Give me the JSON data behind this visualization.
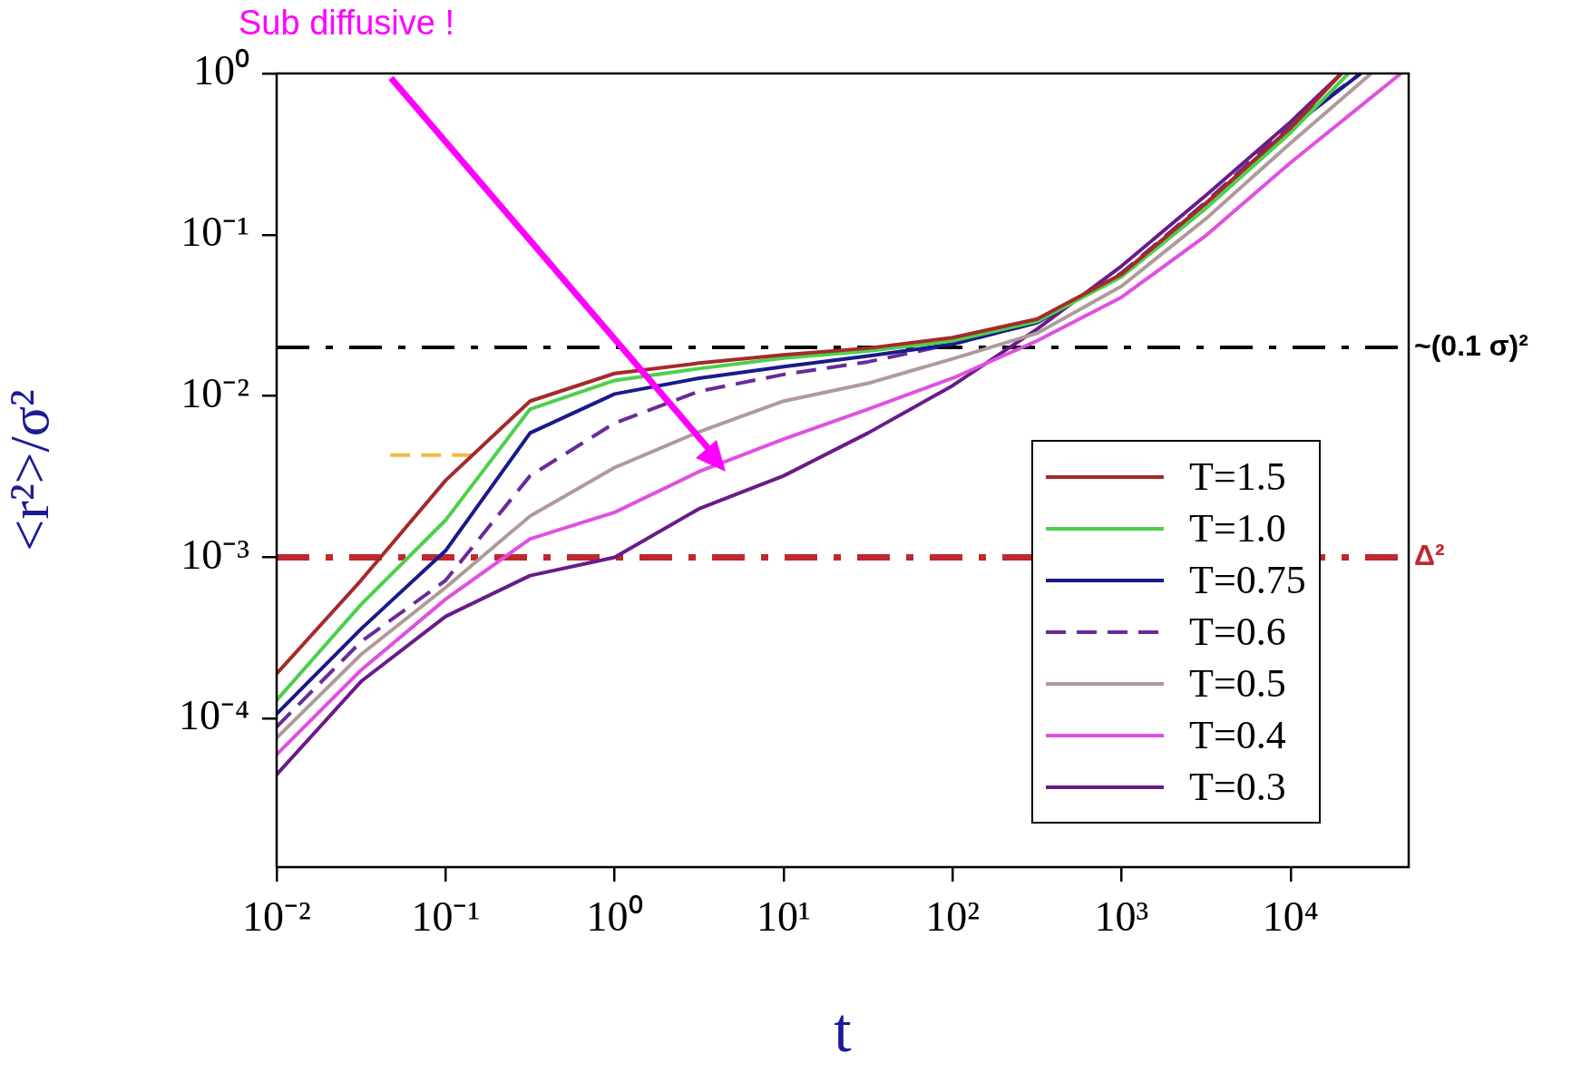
{
  "chart_data": {
    "type": "line",
    "xlabel": "t",
    "ylabel": "<r²>/σ²",
    "log": "xy",
    "xlim": [
      0.01,
      50000
    ],
    "ylim": [
      1.2e-05,
      1
    ],
    "xticks": [
      {
        "value": 0.01,
        "label": "10⁻²"
      },
      {
        "value": 0.1,
        "label": "10⁻¹"
      },
      {
        "value": 1,
        "label": "10⁰"
      },
      {
        "value": 10,
        "label": "10¹"
      },
      {
        "value": 100,
        "label": "10²"
      },
      {
        "value": 1000,
        "label": "10³"
      },
      {
        "value": 10000,
        "label": "10⁴"
      }
    ],
    "yticks": [
      {
        "value": 0.0001,
        "label": "10⁻⁴"
      },
      {
        "value": 0.001,
        "label": "10⁻³"
      },
      {
        "value": 0.01,
        "label": "10⁻²"
      },
      {
        "value": 0.1,
        "label": "10⁻¹"
      },
      {
        "value": 1,
        "label": "10⁰"
      }
    ],
    "legend": "bottom right",
    "series": [
      {
        "name": "T=1.5",
        "color": "#a52a2a",
        "x": [
          0.01,
          0.0316,
          0.1,
          0.316,
          1,
          3.16,
          10,
          31.6,
          100,
          316,
          1000,
          3162,
          10000,
          20000
        ],
        "values": [
          0.00019,
          0.00072,
          0.003,
          0.0093,
          0.0138,
          0.016,
          0.018,
          0.0198,
          0.023,
          0.03,
          0.057,
          0.157,
          0.46,
          1
        ]
      },
      {
        "name": "T=1.0",
        "color": "#4cd04c",
        "x": [
          0.01,
          0.0316,
          0.1,
          0.316,
          1,
          3.16,
          10,
          31.6,
          100,
          316,
          1000,
          3162,
          10000,
          22000
        ],
        "values": [
          0.00013,
          0.00051,
          0.0017,
          0.0083,
          0.0125,
          0.0148,
          0.0172,
          0.019,
          0.022,
          0.029,
          0.055,
          0.146,
          0.43,
          1
        ]
      },
      {
        "name": "T=0.75",
        "color": "#1a1a8c",
        "x": [
          0.01,
          0.0316,
          0.1,
          0.316,
          1,
          3.16,
          10,
          31.6,
          100,
          316,
          1000,
          3162,
          10000,
          26000
        ],
        "values": [
          0.000107,
          0.00036,
          0.0011,
          0.0059,
          0.0103,
          0.0129,
          0.0152,
          0.0177,
          0.021,
          0.0285,
          0.057,
          0.157,
          0.46,
          1
        ]
      },
      {
        "name": "T=0.6",
        "color": "#6a2a9a",
        "line_style": "dashed",
        "x": [
          0.01,
          0.0316,
          0.1,
          0.316,
          1,
          3.16,
          10,
          31.6,
          100,
          316,
          1000,
          3162,
          10000,
          26000
        ],
        "values": [
          8.9e-05,
          0.0003,
          0.00072,
          0.0032,
          0.0068,
          0.0107,
          0.0136,
          0.0163,
          0.021,
          0.0285,
          0.058,
          0.16,
          0.48,
          1
        ]
      },
      {
        "name": "T=0.5",
        "color": "#b09a9a",
        "x": [
          0.01,
          0.0316,
          0.1,
          0.316,
          1,
          3.16,
          10,
          31.6,
          100,
          316,
          1000,
          3162,
          10000,
          30000
        ],
        "values": [
          7.6e-05,
          0.00025,
          0.00065,
          0.0018,
          0.0036,
          0.006,
          0.0093,
          0.012,
          0.017,
          0.0245,
          0.048,
          0.126,
          0.37,
          1
        ]
      },
      {
        "name": "T=0.4",
        "color": "#e050e0",
        "x": [
          0.01,
          0.0316,
          0.1,
          0.316,
          1,
          3.16,
          10,
          31.6,
          100,
          316,
          1000,
          3162,
          10000,
          45000
        ],
        "values": [
          6e-05,
          0.0002,
          0.00055,
          0.0013,
          0.0019,
          0.0034,
          0.0054,
          0.0083,
          0.0129,
          0.022,
          0.041,
          0.099,
          0.28,
          1
        ]
      },
      {
        "name": "T=0.3",
        "color": "#6a1a8a",
        "x": [
          0.01,
          0.0316,
          0.1,
          0.316,
          1,
          3.16,
          10,
          31.6,
          100,
          316,
          1000,
          3162,
          10000,
          20000
        ],
        "values": [
          4.5e-05,
          0.00017,
          0.00043,
          0.00077,
          0.001,
          0.002,
          0.0032,
          0.0059,
          0.0116,
          0.026,
          0.064,
          0.176,
          0.5,
          1
        ]
      },
      {
        "type": "line",
        "color": "#f5b942",
        "line_style": "dashed",
        "x": [
          0.047,
          0.145
        ],
        "values": [
          0.0043,
          0.0043
        ]
      }
    ],
    "ref_lines": [
      {
        "axis": "y",
        "value": 0.02,
        "label": "~(0.1 σ)²",
        "color": "#000000",
        "line_style": "dashed"
      },
      {
        "axis": "y",
        "value": 0.001,
        "label": "Δ²",
        "color": "#c0282d",
        "line_style": "dashed"
      }
    ],
    "annotations": [
      "Sub diffusive !"
    ]
  }
}
